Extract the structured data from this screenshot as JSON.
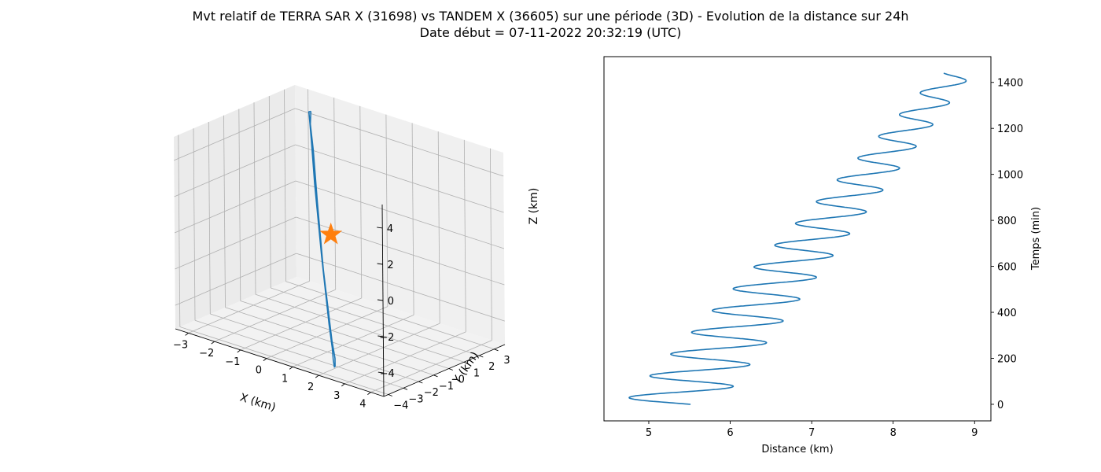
{
  "figure": {
    "title_line1": "Mvt relatif de TERRA SAR X (31698) vs TANDEM X (36605) sur une période (3D) - Evolution de la distance sur 24h",
    "title_line2": "Date début = 07-11-2022 20:32:19 (UTC)"
  },
  "colors": {
    "line": "#1f77b4",
    "marker": "#ff7f0e",
    "pane": "#f2f2f2",
    "grid": "#b0b0b0"
  },
  "chart_data": [
    {
      "type": "line",
      "projection": "3d",
      "xlabel": "X (km)",
      "ylabel": "Y (km)",
      "zlabel": "Z (km)",
      "x_ticks": [
        "−3",
        "−2",
        "−1",
        "0",
        "1",
        "2",
        "3",
        "4"
      ],
      "y_ticks": [
        "−4",
        "−3",
        "−2",
        "−1",
        "0",
        "1",
        "2",
        "3"
      ],
      "z_ticks": [
        "−4",
        "−2",
        "0",
        "2",
        "4"
      ],
      "xlim": [
        -3.5,
        4.5
      ],
      "ylim": [
        -4.3,
        3.7
      ],
      "zlim": [
        -5.3,
        5.3
      ],
      "grid": true,
      "series": [
        {
          "style": "line",
          "color": "#1f77b4",
          "points": [
            [
              -2.18,
              2.48,
              4.9
            ],
            [
              -2.2,
              2.38,
              4.9
            ],
            [
              -2.0,
              2.1,
              4.5
            ],
            [
              -1.65,
              1.6,
              3.7
            ],
            [
              -0.9,
              0.5,
              2.2
            ],
            [
              0.4,
              -1.3,
              -0.6
            ],
            [
              1.6,
              -2.9,
              -3.2
            ],
            [
              1.95,
              -3.3,
              -4.2
            ],
            [
              2.1,
              -3.5,
              -4.7
            ],
            [
              2.2,
              -3.6,
              -5.0
            ],
            [
              2.18,
              -3.52,
              -5.0
            ],
            [
              2.05,
              -3.3,
              -4.7
            ],
            [
              1.7,
              -2.9,
              -4.0
            ],
            [
              0.4,
              -1.2,
              -1.3
            ],
            [
              -0.8,
              0.5,
              1.2
            ],
            [
              -1.7,
              1.8,
              3.2
            ],
            [
              -2.1,
              2.3,
              4.3
            ],
            [
              -2.18,
              2.48,
              4.9
            ]
          ]
        },
        {
          "style": "star",
          "color": "#ff7f0e",
          "points": [
            [
              0,
              0,
              0
            ]
          ]
        }
      ]
    },
    {
      "type": "line",
      "xlabel": "Distance (km)",
      "ylabel": "Temps (min)",
      "x_ticks": [
        5,
        6,
        7,
        8,
        9
      ],
      "y_ticks": [
        0,
        200,
        400,
        600,
        800,
        1000,
        1200,
        1400
      ],
      "xlim": [
        4.45,
        9.2
      ],
      "ylim": [
        -72,
        1512
      ],
      "yaxis_position": "right",
      "grid": false,
      "series": [
        {
          "color": "#1f77b4",
          "model": "sinusoid",
          "t_range": [
            0,
            1440
          ],
          "period_min": 94.8,
          "left_edge": [
            4.68,
            8.56
          ],
          "right_edge": [
            5.87,
            8.97
          ],
          "phase_start": 1.36
        }
      ]
    }
  ]
}
